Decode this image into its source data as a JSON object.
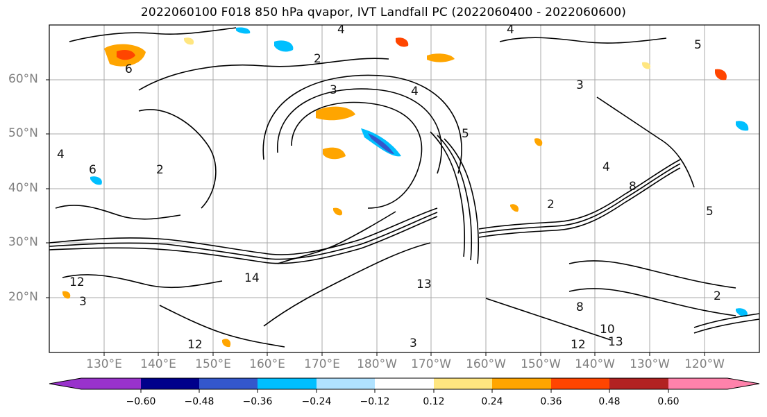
{
  "title": "2022060100 F018 850 hPa qvapor, IVT Landfall PC (2022060400 - 2022060600)",
  "latitude_labels": [
    "60°N",
    "50°N",
    "40°N",
    "30°N",
    "20°N"
  ],
  "longitude_labels": [
    "130°E",
    "140°E",
    "150°E",
    "160°E",
    "170°E",
    "180°W",
    "170°W",
    "160°W",
    "150°W",
    "140°W",
    "130°W",
    "120°W"
  ],
  "colorbar": {
    "tick_labels": [
      "−0.60",
      "−0.48",
      "−0.36",
      "−0.24",
      "−0.12",
      "0.12",
      "0.24",
      "0.36",
      "0.48",
      "0.60"
    ],
    "colors": [
      "#9932cc",
      "#00008b",
      "#3457cc",
      "#00bfff",
      "#b0e2ff",
      "#ffffff",
      "#ffe680",
      "#ffa500",
      "#ff4500",
      "#b22222",
      "#ff82ab"
    ]
  },
  "contour_labels": [
    "4",
    "4",
    "5",
    "2",
    "3",
    "3",
    "4",
    "6",
    "2",
    "5",
    "4",
    "8",
    "5",
    "2",
    "14",
    "12",
    "12",
    "13",
    "8",
    "12",
    "10",
    "13",
    "3",
    "2",
    "4",
    "6",
    "3"
  ]
}
